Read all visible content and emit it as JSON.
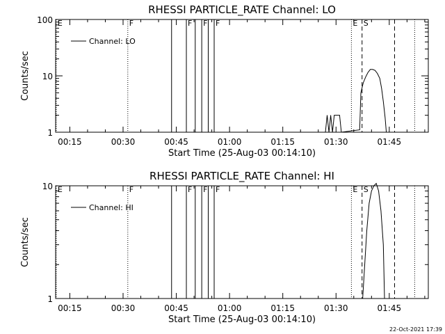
{
  "footer": {
    "timestamp": "22-Oct-2021 17:39"
  },
  "chart_data": [
    {
      "type": "line",
      "title": "RHESSI PARTICLE_RATE Channel: LO",
      "xlabel": "Start Time (25-Aug-03 00:14:10)",
      "ylabel": "Counts/sec",
      "y_scale": "log",
      "ylim": [
        1,
        100
      ],
      "xlim": [
        "00:11",
        "01:56"
      ],
      "xticks": [
        "00:15",
        "00:30",
        "00:45",
        "01:00",
        "01:15",
        "01:30",
        "01:45"
      ],
      "yticks": [
        "1",
        "10",
        "100"
      ],
      "legend": {
        "position": "top-left",
        "entries": [
          "Channel: LO"
        ]
      },
      "series": [
        {
          "name": "Channel: LO",
          "x": [
            "01:27:00",
            "01:27:30",
            "01:28:00",
            "01:28:30",
            "01:29:00",
            "01:29:30",
            "01:30:00",
            "01:30:30",
            "01:31:00",
            "01:31:30",
            "01:36:40",
            "01:37:00",
            "01:37:40",
            "01:38:20",
            "01:39:00",
            "01:39:40",
            "01:40:20",
            "01:41:00",
            "01:41:40",
            "01:42:20",
            "01:42:50",
            "01:43:20",
            "01:43:50",
            "01:44:10"
          ],
          "y": [
            1,
            2,
            1,
            2,
            1,
            2,
            2,
            2,
            2,
            1,
            1.1,
            5,
            7.5,
            9.5,
            11.5,
            13,
            13,
            12.5,
            11,
            9,
            6,
            3.5,
            1.8,
            1
          ]
        }
      ],
      "annotations": [
        {
          "label": "E",
          "time": "00:11:10",
          "style": "dotted"
        },
        {
          "label": "F",
          "time": "00:31:20",
          "style": "dotted"
        },
        {
          "label": "",
          "time": "00:43:40",
          "style": "solid"
        },
        {
          "label": "F",
          "time": "00:47:50",
          "style": "solid"
        },
        {
          "label": "",
          "time": "00:50:20",
          "style": "solid"
        },
        {
          "label": "F",
          "time": "00:52:10",
          "style": "solid"
        },
        {
          "label": "",
          "time": "00:54:00",
          "style": "solid"
        },
        {
          "label": "F",
          "time": "00:55:40",
          "style": "solid"
        },
        {
          "label": "E",
          "time": "01:34:20",
          "style": "dotted"
        },
        {
          "label": "S",
          "time": "01:37:20",
          "style": "dashed"
        },
        {
          "label": "",
          "time": "01:46:30",
          "style": "dashed"
        },
        {
          "label": "",
          "time": "01:52:10",
          "style": "dotted"
        }
      ]
    },
    {
      "type": "line",
      "title": "RHESSI PARTICLE_RATE Channel: HI",
      "xlabel": "Start Time (25-Aug-03 00:14:10)",
      "ylabel": "Counts/sec",
      "y_scale": "log",
      "ylim": [
        1,
        10
      ],
      "xlim": [
        "00:11",
        "01:56"
      ],
      "xticks": [
        "00:15",
        "00:30",
        "00:45",
        "01:00",
        "01:15",
        "01:30",
        "01:45"
      ],
      "yticks": [
        "1",
        "10"
      ],
      "legend": {
        "position": "top-left",
        "entries": [
          "Channel: HI"
        ]
      },
      "series": [
        {
          "name": "Channel: HI",
          "x": [
            "01:37:30",
            "01:38:00",
            "01:38:40",
            "01:39:20",
            "01:40:00",
            "01:40:40",
            "01:41:20",
            "01:42:00",
            "01:42:40",
            "01:43:20",
            "01:43:40"
          ],
          "y": [
            1,
            1.8,
            4,
            7,
            9,
            10,
            10.5,
            9,
            6,
            3,
            1
          ]
        }
      ],
      "annotations": [
        {
          "label": "E",
          "time": "00:11:10",
          "style": "dotted"
        },
        {
          "label": "F",
          "time": "00:31:20",
          "style": "dotted"
        },
        {
          "label": "",
          "time": "00:43:40",
          "style": "solid"
        },
        {
          "label": "F",
          "time": "00:47:50",
          "style": "solid"
        },
        {
          "label": "",
          "time": "00:50:20",
          "style": "solid"
        },
        {
          "label": "F",
          "time": "00:52:10",
          "style": "solid"
        },
        {
          "label": "",
          "time": "00:54:00",
          "style": "solid"
        },
        {
          "label": "F",
          "time": "00:55:40",
          "style": "solid"
        },
        {
          "label": "E",
          "time": "01:34:20",
          "style": "dotted"
        },
        {
          "label": "S",
          "time": "01:37:20",
          "style": "dashed"
        },
        {
          "label": "",
          "time": "01:46:30",
          "style": "dashed"
        },
        {
          "label": "",
          "time": "01:52:10",
          "style": "dotted"
        }
      ]
    }
  ]
}
